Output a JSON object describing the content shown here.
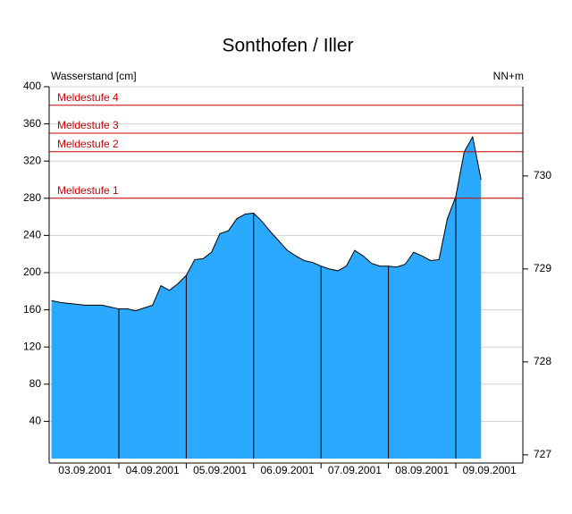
{
  "chart_data": {
    "type": "area",
    "title": "Sonthofen / Iller",
    "y_label": "Wasserstand [cm]",
    "y2_label": "NN+m",
    "categories": [
      null,
      null,
      null,
      null,
      "03.09.2001",
      null,
      null,
      null,
      null,
      null,
      null,
      null,
      "04.09.2001",
      null,
      null,
      null,
      null,
      null,
      null,
      null,
      "05.09.2001",
      null,
      null,
      null,
      null,
      null,
      null,
      null,
      "06.09.2001",
      null,
      null,
      null,
      null,
      null,
      null,
      null,
      "07.09.2001",
      null,
      null,
      null,
      null,
      null,
      null,
      null,
      "08.09.2001",
      null,
      null,
      null,
      null,
      null,
      null,
      null,
      "09.09.2001"
    ],
    "series": [
      {
        "name": "Wasserstand",
        "color": "#2aa9ff",
        "values": [
          170,
          168,
          167,
          166,
          165,
          165,
          165,
          163,
          161,
          161,
          159,
          162,
          165,
          186,
          181,
          188,
          197,
          214,
          215,
          222,
          242,
          245,
          258,
          263,
          264,
          255,
          244,
          234,
          224,
          218,
          213,
          211,
          207,
          204,
          202,
          207,
          224,
          218,
          210,
          207,
          207,
          206,
          209,
          222,
          218,
          213,
          214,
          258,
          282,
          330,
          346,
          300,
          null
        ]
      }
    ],
    "thresholds": [
      {
        "label": "Meldestufe 4",
        "value": 380
      },
      {
        "label": "Meldestufe 3",
        "value": 350
      },
      {
        "label": "Meldestufe 2",
        "value": 330
      },
      {
        "label": "Meldestufe 1",
        "value": 280
      }
    ],
    "threshold_color": "#cc0000",
    "ylim": [
      0,
      400
    ],
    "yticks": [
      40,
      80,
      120,
      160,
      200,
      240,
      280,
      320,
      360,
      400
    ],
    "y2lim": [
      726.96,
      730.96
    ],
    "y2ticks": [
      727,
      728,
      729,
      730
    ],
    "grid": true
  }
}
